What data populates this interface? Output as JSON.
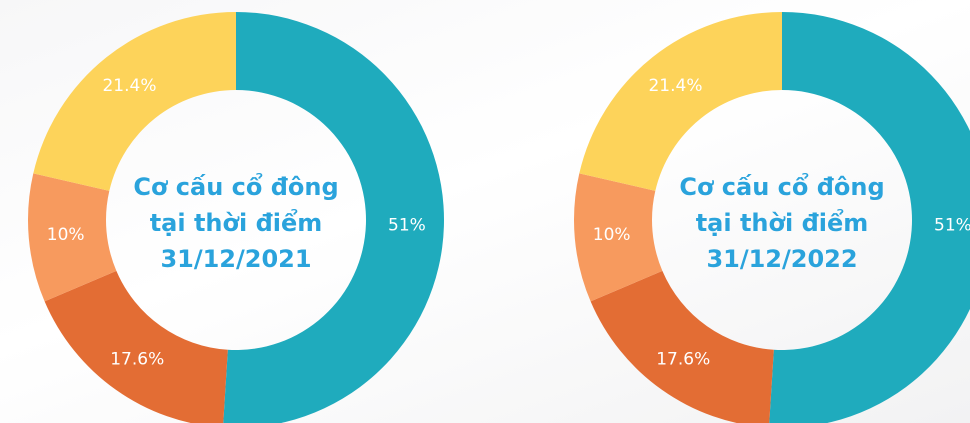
{
  "chart_data": [
    {
      "type": "pie",
      "donut": true,
      "title": [
        "Cơ cấu cổ đông",
        "tại thời điểm",
        "31/12/2021"
      ],
      "values": [
        51,
        17.6,
        10,
        21.4
      ],
      "value_labels": [
        "51%",
        "17.6%",
        "10%",
        "21.4%"
      ],
      "colors": [
        "#1fabbd",
        "#e36d34",
        "#f79a5e",
        "#fdd35a"
      ]
    },
    {
      "type": "pie",
      "donut": true,
      "title": [
        "Cơ cấu cổ đông",
        "tại thời điểm",
        "31/12/2022"
      ],
      "values": [
        51,
        17.6,
        10,
        21.4
      ],
      "value_labels": [
        "51%",
        "17.6%",
        "10%",
        "21.4%"
      ],
      "colors": [
        "#1fabbd",
        "#e36d34",
        "#f79a5e",
        "#fdd35a"
      ]
    }
  ]
}
